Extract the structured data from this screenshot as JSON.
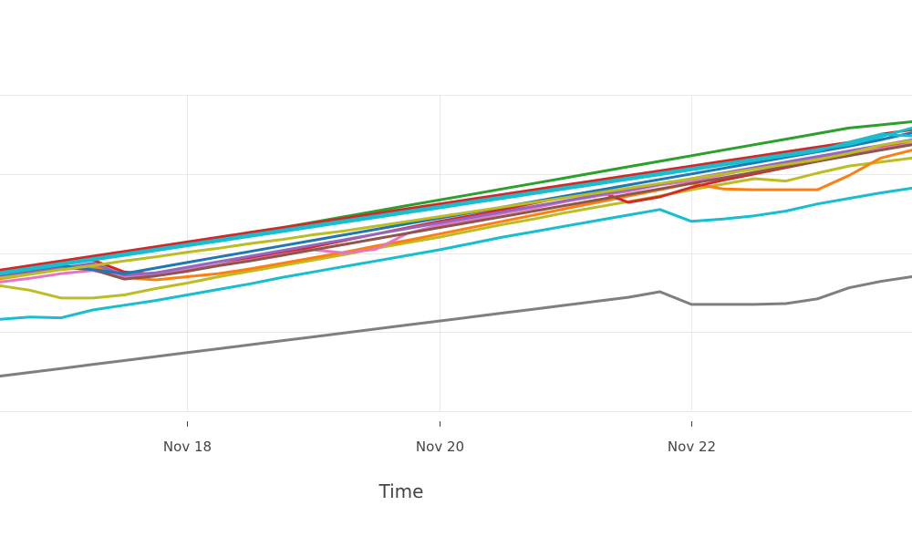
{
  "chart_data": {
    "type": "line",
    "title": "",
    "xlabel": "Time",
    "ylabel": "",
    "grid": true,
    "legend": "none",
    "xlim": [
      "2023-11-16T12:00",
      "2023-11-23T18:00"
    ],
    "ylim": [
      0,
      4
    ],
    "x_ticks": [
      {
        "value": "2023-11-18",
        "label": "Nov 18"
      },
      {
        "value": "2023-11-20",
        "label": "Nov 20"
      },
      {
        "value": "2023-11-22",
        "label": "Nov 22"
      }
    ],
    "y_gridlines": [
      0,
      1,
      2,
      3,
      4
    ],
    "x": [
      "2023-11-16T12:00",
      "2023-11-16T18:00",
      "2023-11-17T00:00",
      "2023-11-17T06:00",
      "2023-11-17T12:00",
      "2023-11-17T18:00",
      "2023-11-18T00:00",
      "2023-11-18T06:00",
      "2023-11-18T12:00",
      "2023-11-18T18:00",
      "2023-11-19T00:00",
      "2023-11-19T06:00",
      "2023-11-19T12:00",
      "2023-11-19T18:00",
      "2023-11-20T00:00",
      "2023-11-20T06:00",
      "2023-11-20T12:00",
      "2023-11-20T18:00",
      "2023-11-21T00:00",
      "2023-11-21T06:00",
      "2023-11-21T12:00",
      "2023-11-21T18:00",
      "2023-11-22T00:00",
      "2023-11-22T06:00",
      "2023-11-22T12:00",
      "2023-11-22T18:00",
      "2023-11-23T00:00",
      "2023-11-23T06:00",
      "2023-11-23T12:00",
      "2023-11-23T18:00"
    ],
    "series": [
      {
        "color": "#7f7f7f",
        "values": [
          0.44,
          0.49,
          0.54,
          0.59,
          0.64,
          0.69,
          0.74,
          0.79,
          0.84,
          0.89,
          0.94,
          0.99,
          1.04,
          1.09,
          1.14,
          1.19,
          1.24,
          1.29,
          1.34,
          1.39,
          1.44,
          1.51,
          1.35,
          1.35,
          1.35,
          1.36,
          1.42,
          1.56,
          1.64,
          1.7
        ]
      },
      {
        "color": "#17becf",
        "values": [
          1.16,
          1.19,
          1.18,
          1.28,
          1.34,
          1.4,
          1.47,
          1.54,
          1.61,
          1.69,
          1.76,
          1.83,
          1.9,
          1.97,
          2.04,
          2.12,
          2.2,
          2.27,
          2.34,
          2.41,
          2.48,
          2.55,
          2.4,
          2.43,
          2.47,
          2.53,
          2.62,
          2.69,
          2.76,
          2.82
        ]
      },
      {
        "color": "#bcbd22",
        "values": [
          1.59,
          1.53,
          1.43,
          1.43,
          1.47,
          1.55,
          1.62,
          1.7,
          1.77,
          1.84,
          1.91,
          1.98,
          2.06,
          2.13,
          2.2,
          2.28,
          2.36,
          2.43,
          2.51,
          2.58,
          2.65,
          2.72,
          2.8,
          2.87,
          2.94,
          2.91,
          3.01,
          3.1,
          3.15,
          3.2
        ]
      },
      {
        "color": "#ff7f0e",
        "values": [
          1.67,
          1.73,
          1.79,
          1.83,
          1.69,
          1.66,
          1.7,
          1.74,
          1.8,
          1.87,
          1.94,
          2.01,
          2.09,
          2.16,
          2.24,
          2.32,
          2.4,
          2.48,
          2.56,
          2.64,
          2.72,
          2.8,
          2.88,
          2.81,
          2.8,
          2.8,
          2.8,
          2.98,
          3.2,
          3.3
        ]
      },
      {
        "color": "#d62728",
        "values": [
          1.75,
          1.8,
          1.86,
          1.91,
          1.76,
          1.73,
          1.78,
          1.85,
          1.93,
          2.0,
          2.08,
          2.16,
          2.24,
          2.32,
          2.4,
          2.47,
          2.55,
          2.63,
          2.71,
          2.79,
          2.64,
          2.71,
          2.83,
          2.92,
          3.0,
          3.08,
          3.16,
          3.24,
          3.34,
          3.42
        ]
      },
      {
        "color": "#e377c2",
        "values": [
          1.63,
          1.68,
          1.74,
          1.78,
          1.7,
          1.72,
          1.79,
          1.85,
          1.91,
          1.98,
          2.04,
          2.0,
          2.05,
          2.25,
          2.35,
          2.42,
          2.5,
          2.57,
          2.65,
          2.72,
          2.78,
          2.86,
          2.91,
          2.99,
          3.07,
          3.12,
          3.2,
          3.26,
          3.32,
          3.38
        ]
      },
      {
        "color": "#8c564b",
        "values": [
          1.71,
          1.76,
          1.82,
          1.79,
          1.67,
          1.71,
          1.77,
          1.84,
          1.9,
          1.97,
          2.04,
          2.11,
          2.18,
          2.25,
          2.32,
          2.39,
          2.46,
          2.53,
          2.6,
          2.67,
          2.74,
          2.81,
          2.88,
          2.95,
          3.02,
          3.09,
          3.16,
          3.23,
          3.3,
          3.37
        ]
      },
      {
        "color": "#9467bd",
        "values": [
          1.69,
          1.75,
          1.81,
          1.87,
          1.72,
          1.75,
          1.82,
          1.89,
          1.96,
          2.03,
          2.1,
          2.17,
          2.24,
          2.31,
          2.38,
          2.45,
          2.52,
          2.59,
          2.66,
          2.73,
          2.8,
          2.87,
          2.94,
          3.01,
          3.08,
          3.15,
          3.22,
          3.29,
          3.36,
          3.43
        ]
      },
      {
        "color": "#1f77b4",
        "values": [
          1.74,
          1.79,
          1.84,
          1.79,
          1.74,
          1.81,
          1.88,
          1.95,
          2.02,
          2.09,
          2.16,
          2.23,
          2.3,
          2.37,
          2.44,
          2.51,
          2.58,
          2.65,
          2.72,
          2.79,
          2.86,
          2.93,
          3.0,
          3.07,
          3.14,
          3.21,
          3.28,
          3.35,
          3.43,
          3.52
        ]
      },
      {
        "color": "#2ca02c",
        "values": [
          1.76,
          1.82,
          1.88,
          1.94,
          2.0,
          2.06,
          2.13,
          2.19,
          2.26,
          2.32,
          2.39,
          2.46,
          2.53,
          2.6,
          2.67,
          2.74,
          2.81,
          2.88,
          2.95,
          3.02,
          3.09,
          3.16,
          3.23,
          3.3,
          3.37,
          3.44,
          3.51,
          3.58,
          3.62,
          3.66
        ]
      },
      {
        "color": "#d62728",
        "values": [
          1.78,
          1.84,
          1.9,
          1.96,
          2.02,
          2.08,
          2.14,
          2.2,
          2.26,
          2.32,
          2.38,
          2.44,
          2.5,
          2.56,
          2.62,
          2.68,
          2.74,
          2.8,
          2.86,
          2.92,
          2.98,
          3.04,
          3.1,
          3.16,
          3.22,
          3.28,
          3.34,
          3.4,
          3.5,
          3.56
        ]
      },
      {
        "color": "#17becf",
        "values": [
          1.73,
          1.79,
          1.85,
          1.91,
          1.97,
          2.03,
          2.09,
          2.15,
          2.21,
          2.27,
          2.33,
          2.39,
          2.45,
          2.51,
          2.57,
          2.63,
          2.69,
          2.75,
          2.81,
          2.87,
          2.93,
          2.99,
          3.05,
          3.11,
          3.17,
          3.23,
          3.29,
          3.4,
          3.5,
          3.48
        ]
      },
      {
        "color": "#17becf",
        "values": [
          1.75,
          1.81,
          1.87,
          1.93,
          1.99,
          2.05,
          2.11,
          2.17,
          2.23,
          2.29,
          2.35,
          2.41,
          2.47,
          2.53,
          2.59,
          2.65,
          2.71,
          2.77,
          2.83,
          2.89,
          2.95,
          3.01,
          3.07,
          3.13,
          3.19,
          3.25,
          3.31,
          3.37,
          3.47,
          3.58
        ]
      },
      {
        "color": "#bcbd22",
        "values": [
          1.68,
          1.73,
          1.79,
          1.84,
          1.9,
          1.95,
          2.01,
          2.06,
          2.12,
          2.17,
          2.23,
          2.28,
          2.34,
          2.4,
          2.46,
          2.52,
          2.58,
          2.64,
          2.7,
          2.76,
          2.82,
          2.88,
          2.94,
          3.0,
          3.06,
          3.12,
          3.18,
          3.26,
          3.36,
          3.42
        ]
      }
    ]
  }
}
